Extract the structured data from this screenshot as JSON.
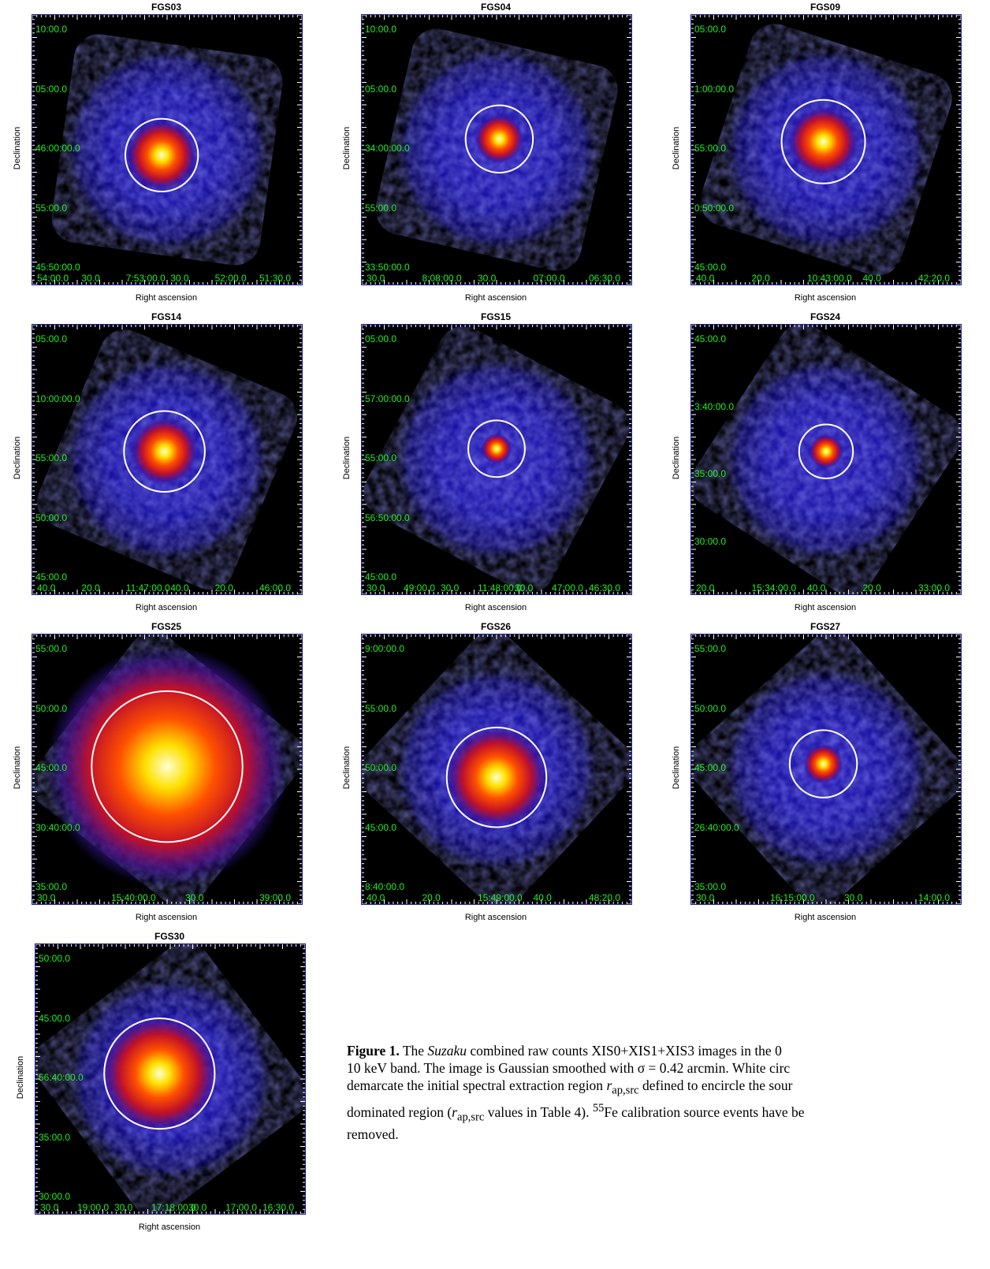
{
  "axis": {
    "xlabel": "Right ascension",
    "ylabel": "Declination"
  },
  "panels": [
    {
      "title": "FGS03",
      "dec": [
        "10:00.0",
        "05:00.0",
        "46:00:00.0",
        "55:00.0",
        "45:50:00.0"
      ],
      "ra": [
        "54:00.0",
        "30.0",
        "7:53:00.0",
        "30.0",
        "52:00.0",
        "51:30.0"
      ],
      "circle": [
        0.48,
        0.52,
        0.135
      ],
      "size": 1.0
    },
    {
      "title": "FGS04",
      "dec": [
        "10:00.0",
        "05:00.0",
        "34:00:00.0",
        "55:00.0",
        "33:50:00.0"
      ],
      "ra": [
        "30.0",
        "8:08:00.0",
        "30.0",
        "07:00.0",
        "06:30.0"
      ],
      "circle": [
        0.51,
        0.46,
        0.125
      ],
      "size": 0.75
    },
    {
      "title": "FGS09",
      "dec": [
        "05:00.0",
        "1:00:00.0",
        "55:00.0",
        "0:50:00.0",
        "45:00.0"
      ],
      "ra": [
        "40.0",
        "20.0",
        "10:43:00.0",
        "40.0",
        "42:20.0"
      ],
      "circle": [
        0.49,
        0.47,
        0.155
      ],
      "size": 0.85
    },
    {
      "title": "FGS14",
      "dec": [
        "05:00.0",
        "10:00:00.0",
        "55:00.0",
        "50:00.0",
        "45:00.0"
      ],
      "ra": [
        "40.0",
        "20.0",
        "11:47:00.0",
        "40.0",
        "20.0",
        "46:00.0"
      ],
      "circle": [
        0.49,
        0.47,
        0.15
      ],
      "size": 0.85
    },
    {
      "title": "FGS15",
      "dec": [
        "05:00.0",
        "57:00:00.0",
        "55:00.0",
        "56:50:00.0",
        "45:00.0"
      ],
      "ra": [
        "30.0",
        "49:00.0",
        "30.0",
        "11:48:00.0",
        "30.0",
        "47:00.0",
        "46:30.0"
      ],
      "circle": [
        0.5,
        0.46,
        0.105
      ],
      "size": 0.55
    },
    {
      "title": "FGS24",
      "dec": [
        "45:00.0",
        "3:40:00.0",
        "35:00.0",
        "30:00.0"
      ],
      "ra": [
        "20.0",
        "15:34:00.0",
        "40.0",
        "20.0",
        "33:00.0"
      ],
      "circle": [
        0.5,
        0.47,
        0.1
      ],
      "size": 0.65
    },
    {
      "title": "FGS25",
      "dec": [
        "55:00.0",
        "50:00.0",
        "45:00.0",
        "30:40:00.0",
        "35:00.0"
      ],
      "ra": [
        "30.0",
        "15:40:00.0",
        "30.0",
        "39:00.0"
      ],
      "circle": [
        0.5,
        0.49,
        0.28
      ],
      "size": 1.6
    },
    {
      "title": "FGS26",
      "dec": [
        "9:00:00.0",
        "55:00.0",
        "50:00.0",
        "45:00.0",
        "8:40:00.0"
      ],
      "ra": [
        "40.0",
        "20.0",
        "15:49:00.0",
        "40.0",
        "48:20.0"
      ],
      "circle": [
        0.5,
        0.53,
        0.185
      ],
      "size": 1.05
    },
    {
      "title": "FGS27",
      "dec": [
        "55:00.0",
        "50:00.0",
        "45:00.0",
        "26:40:00.0",
        "35:00.0"
      ],
      "ra": [
        "30.0",
        "16:15:00.0",
        "30.0",
        "14:00.0"
      ],
      "circle": [
        0.49,
        0.48,
        0.125
      ],
      "size": 0.6
    },
    {
      "title": "FGS30",
      "dec": [
        "50:00.0",
        "45:00.0",
        "56:40:00.0",
        "35:00.0",
        "30:00.0"
      ],
      "ra": [
        "30.0",
        "19:00.0",
        "30.0",
        "17:18:00.0",
        "30.0",
        "17:00.0",
        "16:30.0"
      ],
      "circle": [
        0.46,
        0.48,
        0.205
      ],
      "size": 1.1
    }
  ],
  "caption": {
    "label": "Figure 1.",
    "text_1": " The ",
    "mission": "Suzaku",
    "text_2": " combined raw counts XIS0+XIS1+XIS3 images in the 0",
    "line_2": "10 keV band. The image is Gaussian smoothed with σ = 0.42 arcmin. White circ",
    "line_3_a": "demarcate the initial spectral extraction region ",
    "r_symbol": "r",
    "r_sub": "ap,src",
    "line_3_b": " defined to encircle the sour",
    "line_4_a": "dominated region (",
    "line_4_b": " values in Table 4). ",
    "fe_sup": "55",
    "line_4_c": "Fe calibration source events have be",
    "line_5": "removed."
  }
}
